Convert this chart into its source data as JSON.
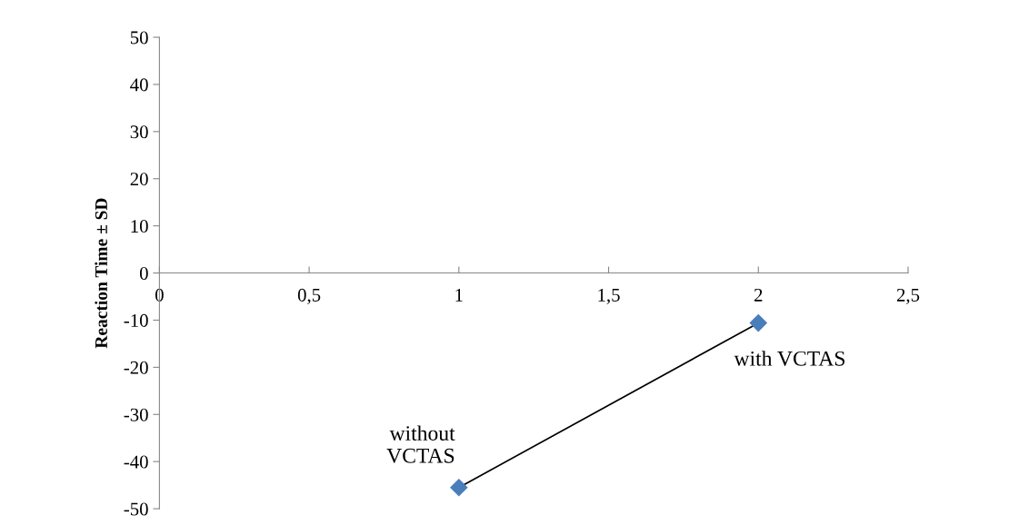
{
  "chart_data": {
    "type": "line",
    "ylabel": "Reaction Time ± SD",
    "x": [
      1,
      2
    ],
    "series": [
      {
        "color": "#4a7ebb",
        "values": [
          -45.5,
          -10.6
        ]
      }
    ],
    "marker": "diamond",
    "line_style": "solid",
    "grid": false,
    "legend": false,
    "xlim": [
      0,
      2.5
    ],
    "xticks": [
      0,
      {
        "value": 0.5,
        "label": "0,5"
      },
      1,
      {
        "value": 1.5,
        "label": "1,5"
      },
      2,
      {
        "value": 2.5,
        "label": "2,5"
      }
    ],
    "ylim": [
      -50,
      50
    ],
    "yticks": [
      -50,
      -40,
      -30,
      -20,
      -10,
      0,
      10,
      20,
      30,
      40,
      50
    ],
    "annotations": [
      {
        "text": "without\nVCTAS",
        "x": 1,
        "y": -45.5
      },
      {
        "text": "with VCTAS",
        "x": 2,
        "y": -10.6
      }
    ]
  }
}
